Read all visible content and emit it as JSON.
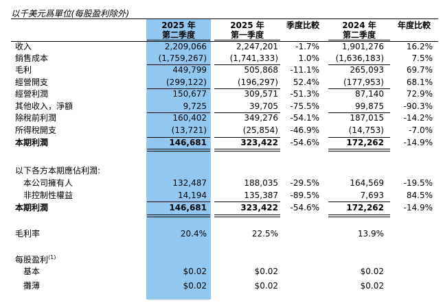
{
  "caption": "以千美元爲單位(每股盈利除外)",
  "headers": {
    "c1": [
      "2025 年",
      "第二季度"
    ],
    "c2": [
      "2025 年",
      "第一季度"
    ],
    "c3": [
      "季度比較"
    ],
    "c4": [
      "2024 年",
      "第二季度"
    ],
    "c5": [
      "年度比較"
    ]
  },
  "rows": [
    {
      "label": "收入",
      "v": [
        "2,209,066",
        "2,247,201",
        "-1.7%",
        "1,901,276",
        "16.2%"
      ]
    },
    {
      "label": "銷售成本",
      "v": [
        "(1,759,267)",
        "(1,741,333)",
        "1.0%",
        "(1,636,183)",
        "7.5%"
      ]
    },
    {
      "label": "毛利",
      "v": [
        "449,799",
        "505,868",
        "-11.1%",
        "265,093",
        "69.7%"
      ]
    },
    {
      "label": "經營開支",
      "v": [
        "(299,122)",
        "(196,297)",
        "52.4%",
        "(177,953)",
        "68.1%"
      ]
    },
    {
      "label": "經營利潤",
      "v": [
        "150,677",
        "309,571",
        "-51.3%",
        "87,140",
        "72.9%"
      ]
    },
    {
      "label": "其他收入，淨額",
      "v": [
        "9,725",
        "39,705",
        "-75.5%",
        "99,875",
        "-90.3%"
      ]
    },
    {
      "label": "除稅前利潤",
      "v": [
        "160,402",
        "349,276",
        "-54.1%",
        "187,015",
        "-14.2%"
      ]
    },
    {
      "label": "所得稅開支",
      "v": [
        "(13,721)",
        "(25,854)",
        "-46.9%",
        "(14,753)",
        "-7.0%"
      ]
    },
    {
      "label": "本期利潤",
      "v": [
        "146,681",
        "323,422",
        "-54.6%",
        "172,262",
        "-14.9%"
      ]
    },
    {
      "label": "以下各方本期應佔利潤:"
    },
    {
      "label": "本公司擁有人",
      "v": [
        "132,487",
        "188,035",
        "-29.5%",
        "164,569",
        "-19.5%"
      ]
    },
    {
      "label": "非控制性權益",
      "v": [
        "14,194",
        "135,387",
        "-89.5%",
        "7,693",
        "84.5%"
      ]
    },
    {
      "label": "本期利潤",
      "v": [
        "146,681",
        "323,422",
        "-54.6%",
        "172,262",
        "-14.9%"
      ]
    },
    {
      "label": "毛利率",
      "v": [
        "20.4%",
        "22.5%",
        "",
        "13.9%",
        ""
      ]
    },
    {
      "label": "每股盈利",
      "sup": "(1)"
    },
    {
      "label": "基本",
      "v": [
        "$0.02",
        "$0.02",
        "",
        "$0.02",
        ""
      ]
    },
    {
      "label": "攤薄",
      "v": [
        "$0.02",
        "$0.02",
        "",
        "$0.02",
        ""
      ]
    }
  ]
}
